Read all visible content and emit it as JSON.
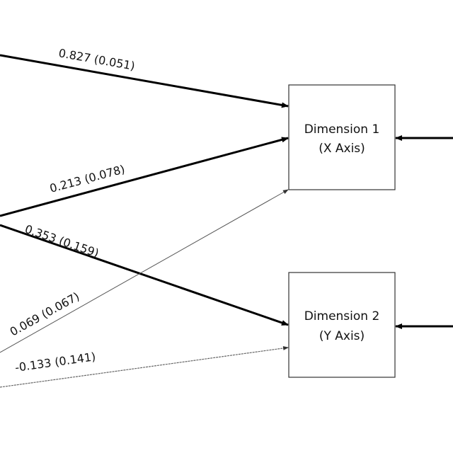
{
  "nodes": [
    {
      "line1": "Dimension 1",
      "line2": "(X Axis)"
    },
    {
      "line1": "Dimension 2",
      "line2": "(Y Axis)"
    }
  ],
  "paths": [
    {
      "label": "0.827 (0.051)",
      "target": "Dimension 1",
      "weight": "thick"
    },
    {
      "label": "0.213 (0.078)",
      "target": "Dimension 1",
      "weight": "thick"
    },
    {
      "label": "0.353 (0.159)",
      "target": "Dimension 2",
      "weight": "thick"
    },
    {
      "label": "0.069 (0.067)",
      "target": "Dimension 1",
      "weight": "thin"
    },
    {
      "label": "-0.133 (0.141)",
      "target": "Dimension 2",
      "weight": "thin"
    }
  ],
  "colors": {
    "line": "#000000",
    "thin_line": "#555555",
    "box_border": "#333333"
  }
}
